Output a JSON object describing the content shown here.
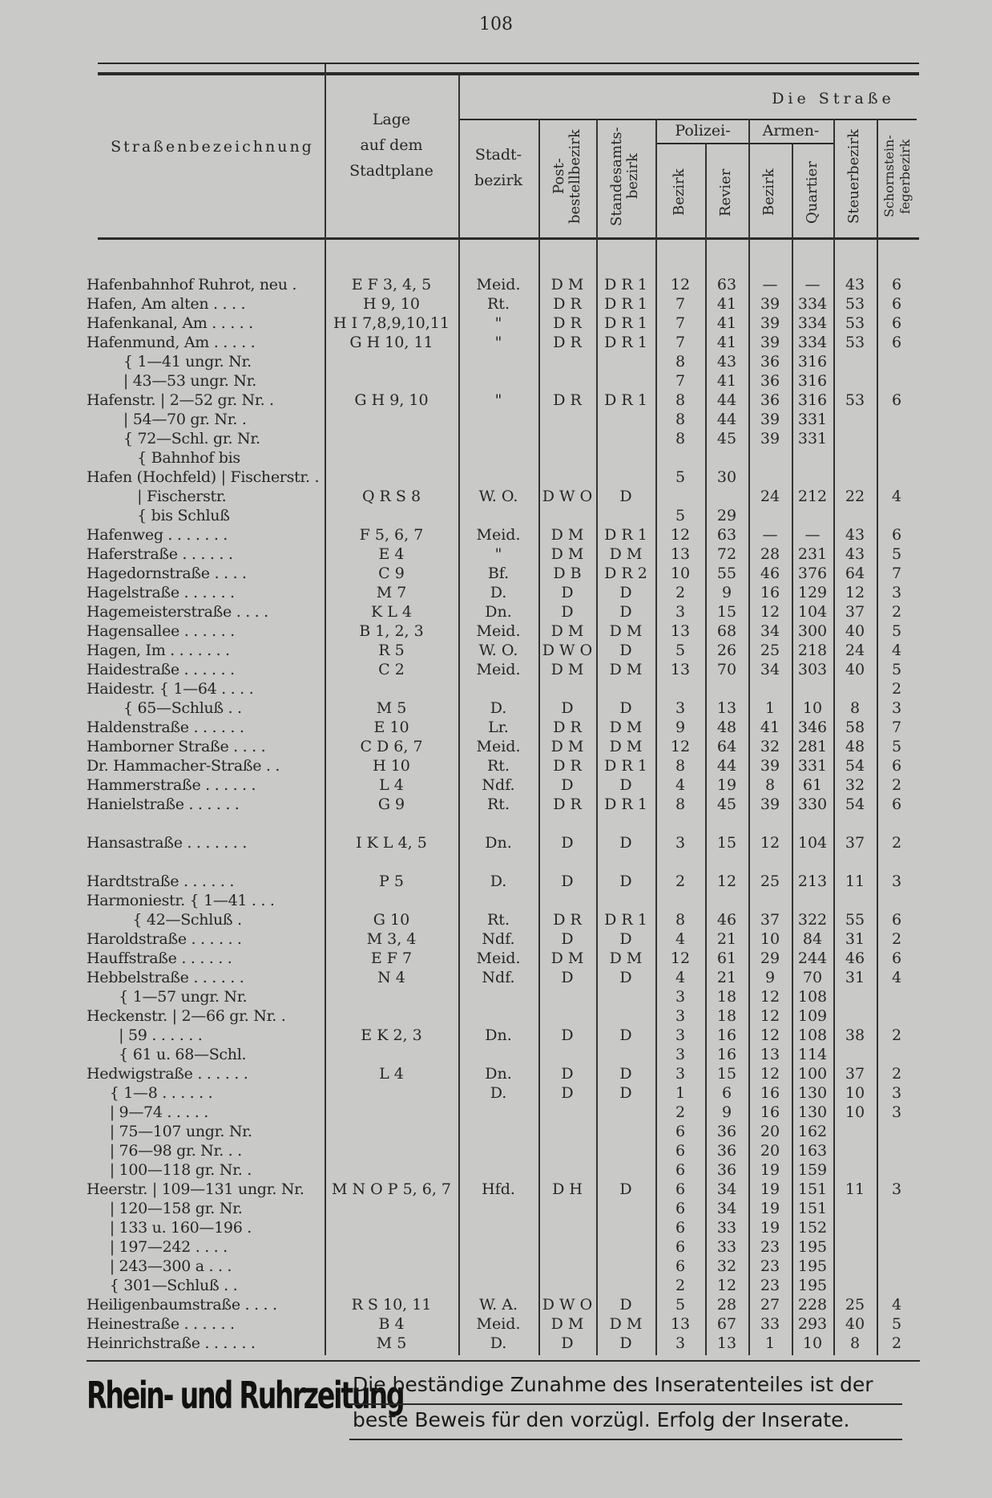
{
  "page_number": "108",
  "header": {
    "street_name": "Straßenbezeichnung",
    "location_line1": "Lage",
    "location_line2": "auf dem",
    "location_line3": "Stadtplane",
    "group_title": "Die Straße",
    "district_line1": "Stadt-",
    "district_line2": "bezirk",
    "postal": "Post-bestellbezirk",
    "registry": "Standesamts-bezirk",
    "police": "Polizei-",
    "police_district": "Bezirk",
    "police_precinct": "Revier",
    "poor": "Armen-",
    "poor_district": "Bezirk",
    "poor_quarter": "Quartier",
    "tax": "Steuerbezirk",
    "chimney": "Schornstein-fegerbezirk"
  },
  "rows": [
    [
      "Hafenbahnhof Ruhrot, neu .",
      "E F 3, 4, 5",
      "Meid.",
      "D M",
      "D R 1",
      "12",
      "63",
      "—",
      "—",
      "43",
      "6"
    ],
    [
      "Hafen, Am alten . . . .",
      "H 9, 10",
      "Rt.",
      "D R",
      "D R 1",
      "7",
      "41",
      "39",
      "334",
      "53",
      "6"
    ],
    [
      "Hafenkanal, Am . . . . .",
      "H I 7,8,9,10,11",
      "\"",
      "D R",
      "D R 1",
      "7",
      "41",
      "39",
      "334",
      "53",
      "6"
    ],
    [
      "Hafenmund, Am . . . . .",
      "G H 10, 11",
      "\"",
      "D R",
      "D R 1",
      "7",
      "41",
      "39",
      "334",
      "53",
      "6"
    ],
    [
      "        { 1—41 ungr. Nr.",
      "",
      "",
      "",
      "",
      "8",
      "43",
      "36",
      "316",
      "",
      ""
    ],
    [
      "        | 43—53 ungr. Nr.",
      "",
      "",
      "",
      "",
      "7",
      "41",
      "36",
      "316",
      "",
      ""
    ],
    [
      "Hafenstr. | 2—52 gr. Nr. .",
      "G H 9, 10",
      "\"",
      "D R",
      "D R 1",
      "8",
      "44",
      "36",
      "316",
      "53",
      "6"
    ],
    [
      "        | 54—70 gr. Nr. .",
      "",
      "",
      "",
      "",
      "8",
      "44",
      "39",
      "331",
      "",
      ""
    ],
    [
      "        { 72—Schl. gr. Nr.",
      "",
      "",
      "",
      "",
      "8",
      "45",
      "39",
      "331",
      "",
      ""
    ],
    [
      "           { Bahnhof bis",
      "",
      "",
      "",
      "",
      "",
      "",
      "",
      "",
      "",
      ""
    ],
    [
      "Hafen (Hochfeld) | Fischerstr. .",
      "",
      "",
      "",
      "",
      "5",
      "30",
      "",
      "",
      "",
      ""
    ],
    [
      "           | Fischerstr.",
      "Q R S 8",
      "W. O.",
      "D W O",
      "D",
      "",
      "",
      "24",
      "212",
      "22",
      "4"
    ],
    [
      "           { bis Schluß",
      "",
      "",
      "",
      "",
      "5",
      "29",
      "",
      "",
      "",
      ""
    ],
    [
      "Hafenweg . . . . . . .",
      "F 5, 6, 7",
      "Meid.",
      "D M",
      "D R 1",
      "12",
      "63",
      "—",
      "—",
      "43",
      "6"
    ],
    [
      "Haferstraße . . . . . .",
      "E 4",
      "\"",
      "D M",
      "D M",
      "13",
      "72",
      "28",
      "231",
      "43",
      "5"
    ],
    [
      "Hagedornstraße . . . .",
      "C 9",
      "Bf.",
      "D B",
      "D R 2",
      "10",
      "55",
      "46",
      "376",
      "64",
      "7"
    ],
    [
      "Hagelstraße . . . . . .",
      "M 7",
      "D.",
      "D",
      "D",
      "2",
      "9",
      "16",
      "129",
      "12",
      "3"
    ],
    [
      "Hagemeisterstraße . . . .",
      "K L 4",
      "Dn.",
      "D",
      "D",
      "3",
      "15",
      "12",
      "104",
      "37",
      "2"
    ],
    [
      "Hagensallee . . . . . .",
      "B 1, 2, 3",
      "Meid.",
      "D M",
      "D M",
      "13",
      "68",
      "34",
      "300",
      "40",
      "5"
    ],
    [
      "Hagen, Im . . . . . . .",
      "R 5",
      "W. O.",
      "D W O",
      "D",
      "5",
      "26",
      "25",
      "218",
      "24",
      "4"
    ],
    [
      "Haidestraße . . . . . .",
      "C 2",
      "Meid.",
      "D M",
      "D M",
      "13",
      "70",
      "34",
      "303",
      "40",
      "5"
    ],
    [
      "Haidestr. { 1—64 . . . .",
      "",
      "",
      "",
      "",
      "",
      "",
      "",
      "",
      "",
      "2"
    ],
    [
      "        { 65—Schluß . .",
      "M 5",
      "D.",
      "D",
      "D",
      "3",
      "13",
      "1",
      "10",
      "8",
      "3"
    ],
    [
      "Haldenstraße . . . . . .",
      "E 10",
      "Lr.",
      "D R",
      "D M",
      "9",
      "48",
      "41",
      "346",
      "58",
      "7"
    ],
    [
      "Hamborner Straße . . . .",
      "C D 6, 7",
      "Meid.",
      "D M",
      "D M",
      "12",
      "64",
      "32",
      "281",
      "48",
      "5"
    ],
    [
      "Dr. Hammacher-Straße . .",
      "H 10",
      "Rt.",
      "D R",
      "D R 1",
      "8",
      "44",
      "39",
      "331",
      "54",
      "6"
    ],
    [
      "Hammerstraße . . . . . .",
      "L 4",
      "Ndf.",
      "D",
      "D",
      "4",
      "19",
      "8",
      "61",
      "32",
      "2"
    ],
    [
      "Hanielstraße . . . . . .",
      "G 9",
      "Rt.",
      "D R",
      "D R 1",
      "8",
      "45",
      "39",
      "330",
      "54",
      "6"
    ],
    [
      "",
      "",
      "",
      "",
      "",
      "",
      "",
      "",
      "",
      "",
      ""
    ],
    [
      "Hansastraße . . . . . . .",
      "I K L 4, 5",
      "Dn.",
      "D",
      "D",
      "3",
      "15",
      "12",
      "104",
      "37",
      "2"
    ],
    [
      "",
      "",
      "",
      "",
      "",
      "",
      "",
      "",
      "",
      "",
      ""
    ],
    [
      "Hardtstraße . . . . . .",
      "P 5",
      "D.",
      "D",
      "D",
      "2",
      "12",
      "25",
      "213",
      "11",
      "3"
    ],
    [
      "Harmoniestr. { 1—41 . . .",
      "",
      "",
      "",
      "",
      "",
      "",
      "",
      "",
      "",
      ""
    ],
    [
      "          { 42—Schluß .",
      "G 10",
      "Rt.",
      "D R",
      "D R 1",
      "8",
      "46",
      "37",
      "322",
      "55",
      "6"
    ],
    [
      "Haroldstraße . . . . . .",
      "M 3, 4",
      "Ndf.",
      "D",
      "D",
      "4",
      "21",
      "10",
      "84",
      "31",
      "2"
    ],
    [
      "Hauffstraße . . . . . .",
      "E F 7",
      "Meid.",
      "D M",
      "D M",
      "12",
      "61",
      "29",
      "244",
      "46",
      "6"
    ],
    [
      "Hebbelstraße . . . . . .",
      "N 4",
      "Ndf.",
      "D",
      "D",
      "4",
      "21",
      "9",
      "70",
      "31",
      "4"
    ],
    [
      "       { 1—57 ungr. Nr.",
      "",
      "",
      "",
      "",
      "3",
      "18",
      "12",
      "108",
      "",
      ""
    ],
    [
      "Heckenstr. | 2—66 gr. Nr. .",
      "",
      "",
      "",
      "",
      "3",
      "18",
      "12",
      "109",
      "",
      ""
    ],
    [
      "       | 59 . . . . . .",
      "E K 2, 3",
      "Dn.",
      "D",
      "D",
      "3",
      "16",
      "12",
      "108",
      "38",
      "2"
    ],
    [
      "       { 61 u. 68—Schl.",
      "",
      "",
      "",
      "",
      "3",
      "16",
      "13",
      "114",
      "",
      ""
    ],
    [
      "Hedwigstraße . . . . . .",
      "L 4",
      "Dn.",
      "D",
      "D",
      "3",
      "15",
      "12",
      "100",
      "37",
      "2"
    ],
    [
      "     { 1—8 . . . . . .",
      "",
      "D.",
      "D",
      "D",
      "1",
      "6",
      "16",
      "130",
      "10",
      "3"
    ],
    [
      "     | 9—74 . . . . .",
      "",
      "",
      "",
      "",
      "2",
      "9",
      "16",
      "130",
      "10",
      "3"
    ],
    [
      "     | 75—107 ungr. Nr.",
      "",
      "",
      "",
      "",
      "6",
      "36",
      "20",
      "162",
      "",
      ""
    ],
    [
      "     | 76—98 gr. Nr. . .",
      "",
      "",
      "",
      "",
      "6",
      "36",
      "20",
      "163",
      "",
      ""
    ],
    [
      "     | 100—118 gr. Nr. .",
      "",
      "",
      "",
      "",
      "6",
      "36",
      "19",
      "159",
      "",
      ""
    ],
    [
      "Heerstr. | 109—131 ungr. Nr.",
      "M N O P 5, 6, 7",
      "Hfd.",
      "D H",
      "D",
      "6",
      "34",
      "19",
      "151",
      "11",
      "3"
    ],
    [
      "     | 120—158 gr. Nr.",
      "",
      "",
      "",
      "",
      "6",
      "34",
      "19",
      "151",
      "",
      ""
    ],
    [
      "     | 133 u. 160—196 .",
      "",
      "",
      "",
      "",
      "6",
      "33",
      "19",
      "152",
      "",
      ""
    ],
    [
      "     | 197—242 . . . .",
      "",
      "",
      "",
      "",
      "6",
      "33",
      "23",
      "195",
      "",
      ""
    ],
    [
      "     | 243—300 a . . .",
      "",
      "",
      "",
      "",
      "6",
      "32",
      "23",
      "195",
      "",
      ""
    ],
    [
      "     { 301—Schluß . .",
      "",
      "",
      "",
      "",
      "2",
      "12",
      "23",
      "195",
      "",
      ""
    ],
    [
      "Heiligenbaumstraße . . . .",
      "R S 10, 11",
      "W. A.",
      "D W O",
      "D",
      "5",
      "28",
      "27",
      "228",
      "25",
      "4"
    ],
    [
      "Heinestraße . . . . . .",
      "B 4",
      "Meid.",
      "D M",
      "D M",
      "13",
      "67",
      "33",
      "293",
      "40",
      "5"
    ],
    [
      "Heinrichstraße . . . . . .",
      "M 5",
      "D.",
      "D",
      "D",
      "3",
      "13",
      "1",
      "10",
      "8",
      "2"
    ]
  ],
  "advertisement": {
    "title": "Rhein- und Ruhrzeitung",
    "line1": "Die beständige Zunahme des Inseratenteiles ist der",
    "line2": "beste Beweis für den vorzügl. Erfolg der Inserate."
  }
}
